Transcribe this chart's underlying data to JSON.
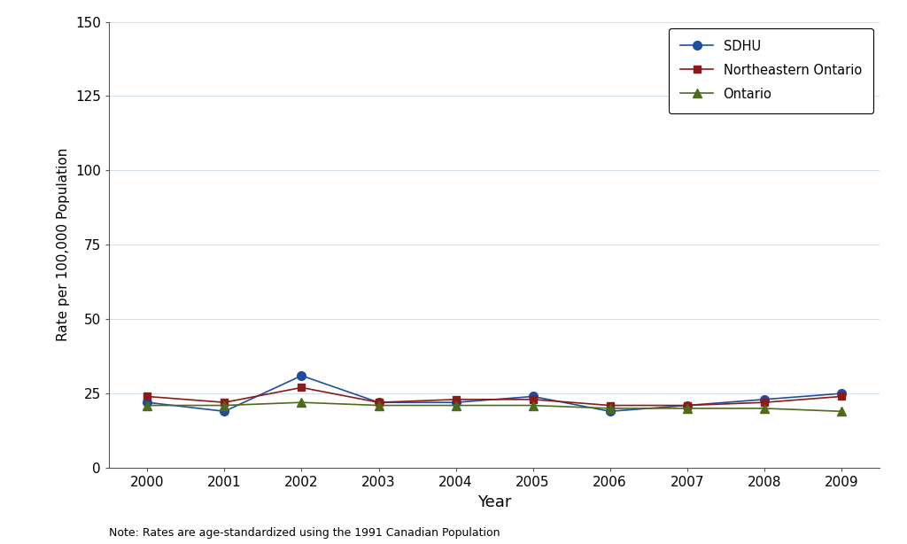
{
  "years": [
    2000,
    2001,
    2002,
    2003,
    2004,
    2005,
    2006,
    2007,
    2008,
    2009
  ],
  "sdhu": [
    22,
    19,
    31,
    22,
    22,
    24,
    19,
    21,
    23,
    25
  ],
  "northeastern_ontario": [
    24,
    22,
    27,
    22,
    23,
    23,
    21,
    21,
    22,
    24
  ],
  "ontario": [
    21,
    21,
    22,
    21,
    21,
    21,
    20,
    20,
    20,
    19
  ],
  "sdhu_color": "#1f4e9e",
  "ne_ontario_color": "#8b1a1a",
  "ontario_color": "#4d6b1c",
  "ylim": [
    0,
    150
  ],
  "yticks": [
    0,
    25,
    50,
    75,
    100,
    125,
    150
  ],
  "xlim": [
    1999.5,
    2009.5
  ],
  "xlabel": "Year",
  "ylabel": "Rate per 100,000 Population",
  "legend_labels": [
    "SDHU",
    "Northeastern Ontario",
    "Ontario"
  ],
  "note": "Note: Rates are age-standardized using the 1991 Canadian Population",
  "background_color": "#ffffff",
  "grid_color": "#d0dde8"
}
